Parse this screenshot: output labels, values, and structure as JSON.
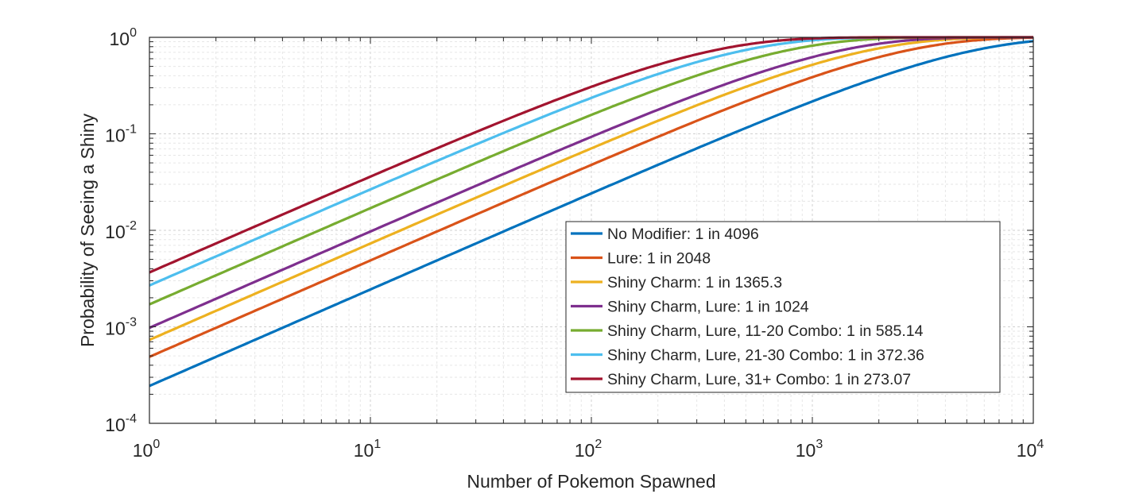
{
  "chart_data": {
    "type": "line",
    "title": "",
    "xlabel": "Number of Pokemon Spawned",
    "ylabel": "Probability of Seeing a Shiny",
    "xscale": "log",
    "yscale": "log",
    "xlim": [
      1,
      10000
    ],
    "ylim": [
      0.0001,
      1
    ],
    "grid": true,
    "minor_grid": true,
    "legend_position": "bottom-right",
    "xticks": [
      {
        "base": "10",
        "exp": "0"
      },
      {
        "base": "10",
        "exp": "1"
      },
      {
        "base": "10",
        "exp": "2"
      },
      {
        "base": "10",
        "exp": "3"
      },
      {
        "base": "10",
        "exp": "4"
      }
    ],
    "yticks": [
      {
        "base": "10",
        "exp": "-4"
      },
      {
        "base": "10",
        "exp": "-3"
      },
      {
        "base": "10",
        "exp": "-2"
      },
      {
        "base": "10",
        "exp": "-1"
      },
      {
        "base": "10",
        "exp": "0"
      }
    ],
    "formula": "1-(1-1/odds)^n",
    "series": [
      {
        "name": "No Modifier: 1 in 4096",
        "odds": 4096,
        "color": "#0072BD"
      },
      {
        "name": "Lure: 1 in 2048",
        "odds": 2048,
        "color": "#D95319"
      },
      {
        "name": "Shiny Charm: 1 in 1365.3",
        "odds": 1365.3,
        "color": "#EDB120"
      },
      {
        "name": "Shiny Charm, Lure: 1 in 1024",
        "odds": 1024,
        "color": "#7E2F8E"
      },
      {
        "name": "Shiny Charm, Lure, 11-20 Combo: 1 in 585.14",
        "odds": 585.14,
        "color": "#77AC30"
      },
      {
        "name": "Shiny Charm, Lure, 21-30 Combo: 1 in 372.36",
        "odds": 372.36,
        "color": "#4DBEEE"
      },
      {
        "name": "Shiny Charm, Lure, 31+ Combo: 1 in 273.07",
        "odds": 273.07,
        "color": "#A2142F"
      }
    ]
  }
}
